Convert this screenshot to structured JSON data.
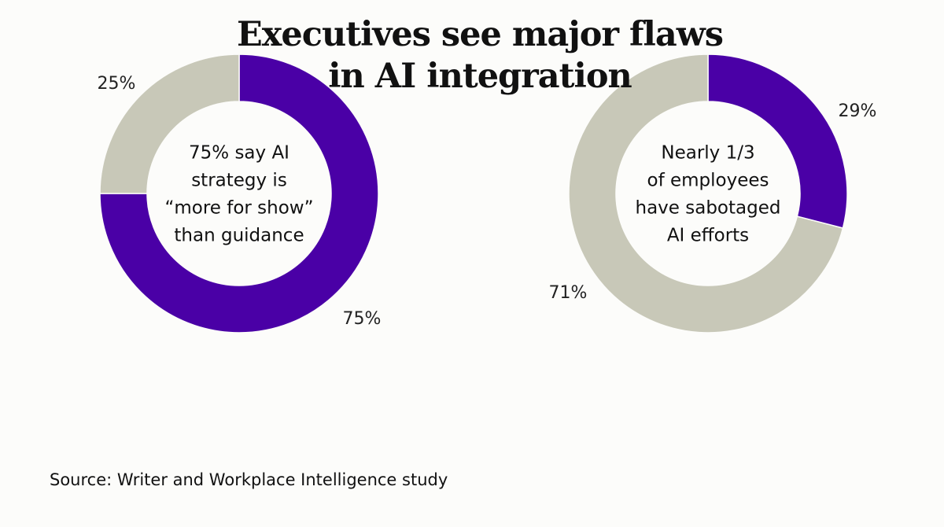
{
  "title_lines": [
    "Executives see major flaws",
    "in AI integration"
  ],
  "source": "Source: Writer and Workplace Intelligence study",
  "colors": {
    "primary": "#4a00a6",
    "secondary": "#c8c8b8",
    "background": "#fcfcfa"
  },
  "chart_data": [
    {
      "type": "pie",
      "variant": "donut",
      "center_text": [
        "75% say AI",
        "strategy is",
        "“more for show”",
        "than guidance"
      ],
      "slices": [
        {
          "value": 75,
          "label": "75%",
          "color": "#4a00a6"
        },
        {
          "value": 25,
          "label": "25%",
          "color": "#c8c8b8"
        }
      ]
    },
    {
      "type": "pie",
      "variant": "donut",
      "center_text": [
        "Nearly 1/3",
        "of employees",
        "have sabotaged",
        "AI efforts"
      ],
      "slices": [
        {
          "value": 29,
          "label": "29%",
          "color": "#4a00a6"
        },
        {
          "value": 71,
          "label": "71%",
          "color": "#c8c8b8"
        }
      ]
    }
  ]
}
